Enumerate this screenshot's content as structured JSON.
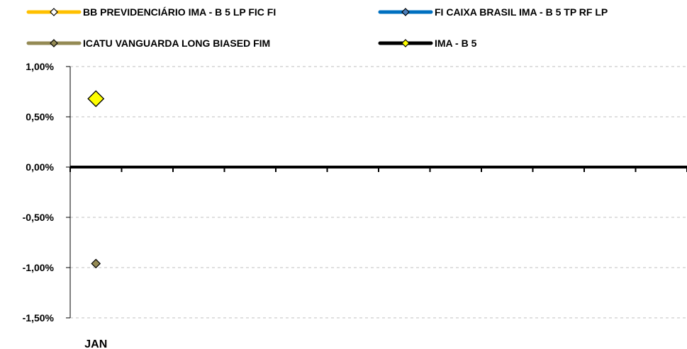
{
  "chart_data": {
    "type": "line",
    "categories": [
      "JAN",
      "",
      "",
      "",
      "",
      "",
      "",
      "",
      "",
      "",
      "",
      ""
    ],
    "ylim": [
      -0.015,
      0.01
    ],
    "yticks": [
      0.01,
      0.005,
      0,
      -0.005,
      -0.01,
      -0.015
    ],
    "ytick_labels": [
      "1,00%",
      "0,50%",
      "0,00%",
      "-0,50%",
      "-1,00%",
      "-1,50%"
    ],
    "grid": true,
    "legend_position": "top",
    "series": [
      {
        "name": "BB PREVIDENCIÁRIO IMA - B 5 LP FIC FI",
        "line_color": "#FFC000",
        "marker_fill": "#FFFFFF",
        "values": [
          null,
          null,
          null,
          null,
          null,
          null,
          null,
          null,
          null,
          null,
          null,
          null
        ]
      },
      {
        "name": "FI CAIXA BRASIL IMA - B 5 TP RF LP",
        "line_color": "#0070C0",
        "marker_fill": "#4A7EBB",
        "values": [
          null,
          null,
          null,
          null,
          null,
          null,
          null,
          null,
          null,
          null,
          null,
          null
        ]
      },
      {
        "name": "ICATU VANGUARDA LONG BIASED FIM",
        "line_color": "#948A54",
        "marker_fill": "#948A54",
        "values": [
          -0.0096,
          null,
          null,
          null,
          null,
          null,
          null,
          null,
          null,
          null,
          null,
          null
        ]
      },
      {
        "name": "IMA - B 5",
        "line_color": "#000000",
        "marker_fill": "#FFFF00",
        "values": [
          0.0068,
          null,
          null,
          null,
          null,
          null,
          null,
          null,
          null,
          null,
          null,
          null
        ]
      }
    ]
  }
}
